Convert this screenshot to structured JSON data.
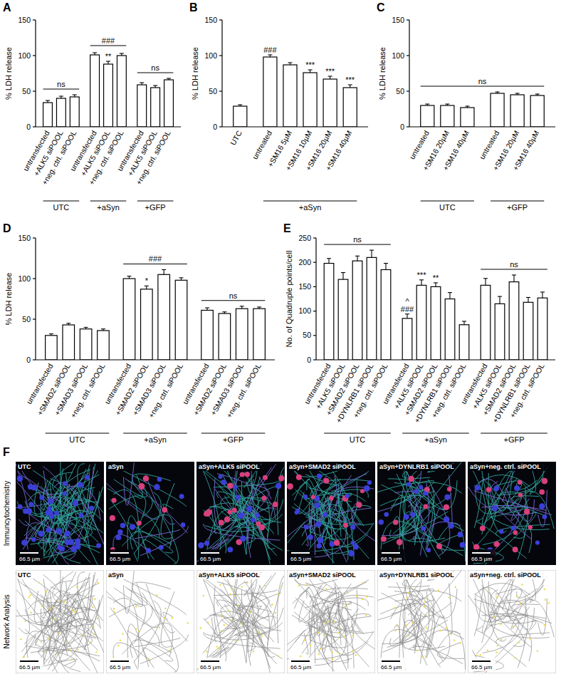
{
  "chart_data": [
    {
      "panel": "A",
      "type": "bar",
      "y_label": "% LDH release",
      "ylim": [
        0,
        150
      ],
      "yticks": [
        0,
        50,
        100,
        150
      ],
      "groups": [
        {
          "name": "UTC",
          "annotation": "ns",
          "categories": [
            "untransfected",
            "+ALK5 siPOOL",
            "+neg. ctrl. siPOOL"
          ],
          "values": [
            34,
            40,
            42
          ],
          "errors": [
            3,
            3,
            3
          ]
        },
        {
          "name": "+aSyn",
          "annotation": "###",
          "categories": [
            "untransfected",
            "+ALK5 siPOOL",
            "+neg. ctrl. siPOOL"
          ],
          "values": [
            101,
            88,
            100
          ],
          "errors": [
            3,
            4,
            3
          ],
          "bar_labels": [
            null,
            "**",
            null
          ]
        },
        {
          "name": "+GFP",
          "annotation": "ns",
          "categories": [
            "untransfected",
            "+ALK5 siPOOL",
            "+neg. ctrl. siPOOL"
          ],
          "values": [
            59,
            55,
            66
          ],
          "errors": [
            3,
            3,
            2
          ]
        }
      ]
    },
    {
      "panel": "B",
      "type": "bar",
      "y_label": "% LDH release",
      "ylim": [
        0,
        150
      ],
      "yticks": [
        0,
        50,
        100,
        150
      ],
      "groups": [
        {
          "name": null,
          "categories": [
            "UTC"
          ],
          "values": [
            29
          ],
          "errors": [
            2
          ]
        },
        {
          "name": "+aSyn",
          "categories": [
            "untreated",
            "+SM16 5µM",
            "+SM16 10µM",
            "+SM16 20µM",
            "+SM16 40µM"
          ],
          "values": [
            98,
            87,
            76,
            67,
            55
          ],
          "errors": [
            3,
            3,
            4,
            4,
            4
          ],
          "bar_labels": [
            "###",
            null,
            "***",
            "***",
            "***"
          ]
        }
      ]
    },
    {
      "panel": "C",
      "type": "bar",
      "y_label": "% LDH release",
      "ylim": [
        0,
        150
      ],
      "yticks": [
        0,
        50,
        100,
        150
      ],
      "annotation": "ns",
      "groups": [
        {
          "name": "UTC",
          "categories": [
            "untreated",
            "+SM16 20µM",
            "+SM16 40µM"
          ],
          "values": [
            30,
            30,
            27
          ],
          "errors": [
            2,
            2,
            2
          ]
        },
        {
          "name": "+GFP",
          "categories": [
            "untreated",
            "+SM16 20µM",
            "+SM16 40µM"
          ],
          "values": [
            47,
            45,
            44
          ],
          "errors": [
            2,
            2,
            2
          ]
        }
      ]
    },
    {
      "panel": "D",
      "type": "bar",
      "y_label": "% LDH release",
      "ylim": [
        0,
        150
      ],
      "yticks": [
        0,
        50,
        100,
        150
      ],
      "groups": [
        {
          "name": "UTC",
          "categories": [
            "untransfected",
            "+SMAD2 siPOOL",
            "+SMAD3 siPOOL",
            "+neg. ctrl. siPOOL"
          ],
          "values": [
            30,
            43,
            38,
            36
          ],
          "errors": [
            2,
            2,
            2,
            2
          ]
        },
        {
          "name": "+aSyn",
          "annotation": "###",
          "categories": [
            "untransfected",
            "+SMAD2 siPOOL",
            "+SMAD3 siPOOL",
            "+neg. ctrl. siPOOL"
          ],
          "values": [
            100,
            87,
            105,
            98
          ],
          "errors": [
            3,
            4,
            6,
            3
          ],
          "bar_labels": [
            null,
            "*",
            null,
            null
          ]
        },
        {
          "name": "+GFP",
          "annotation": "ns",
          "categories": [
            "untransfected",
            "+SMAD2 siPOOL",
            "+SMAD3 siPOOL",
            "+neg. ctrl. siPOOL"
          ],
          "values": [
            61,
            57,
            63,
            63
          ],
          "errors": [
            3,
            2,
            3,
            2
          ]
        }
      ]
    },
    {
      "panel": "E",
      "type": "bar",
      "y_label": "No. of Quadruple points/cell",
      "ylim": [
        0,
        250
      ],
      "yticks": [
        0,
        50,
        100,
        150,
        200,
        250
      ],
      "groups": [
        {
          "name": "UTC",
          "annotation": "ns",
          "categories": [
            "untransfected",
            "+ALK5 siPOOL",
            "+SMAD2 siPOOL",
            "+DYNLRB1 siPOOL",
            "+neg. ctrl. siPOOL"
          ],
          "values": [
            198,
            165,
            203,
            210,
            185
          ],
          "errors": [
            10,
            14,
            10,
            15,
            13
          ]
        },
        {
          "name": "+aSyn",
          "categories": [
            "untransfected",
            "+ALK5 siPOOL",
            "+SMAD2 siPOOL",
            "+DYNLRB1 siPOOL",
            "+neg. ctrl. siPOOL"
          ],
          "values": [
            85,
            153,
            150,
            125,
            72
          ],
          "errors": [
            9,
            11,
            8,
            13,
            7
          ],
          "bar_labels": [
            [
              "^",
              "###"
            ],
            "***",
            "**",
            null,
            null
          ]
        },
        {
          "name": "+GFP",
          "annotation": "ns",
          "categories": [
            "untransfected",
            "+ALK5 siPOOL",
            "+SMAD2 siPOOL",
            "+DYNLRB1 siPOOL",
            "+neg. ctrl. siPOOL"
          ],
          "values": [
            153,
            115,
            160,
            118,
            127
          ],
          "errors": [
            14,
            15,
            14,
            10,
            12
          ]
        }
      ]
    }
  ],
  "panel_f": {
    "panel": "F",
    "row_labels": [
      "Immuncytochemistry",
      "Network Analysis"
    ],
    "images": [
      "UTC",
      "aSyn",
      "aSyn+ALK5 siPOOL",
      "aSyn+SMAD2 siPOOL",
      "aSyn+DYNLRB1 siPOOL",
      "aSyn+neg. ctrl. siPOOL"
    ],
    "scale_bar": "66.5 µm"
  }
}
